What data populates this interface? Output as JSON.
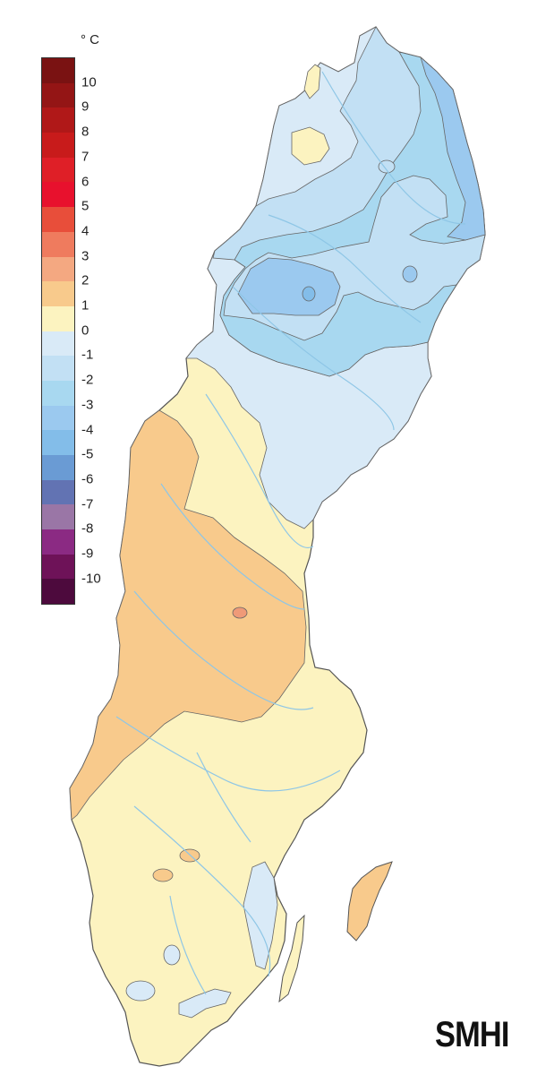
{
  "legend": {
    "unit": "° C",
    "entries": [
      {
        "label": "10",
        "color": "#7a1212"
      },
      {
        "label": "9",
        "color": "#941515"
      },
      {
        "label": "8",
        "color": "#b01818"
      },
      {
        "label": "7",
        "color": "#c81b1b"
      },
      {
        "label": "6",
        "color": "#df1f27"
      },
      {
        "label": "5",
        "color": "#e8112d"
      },
      {
        "label": "4",
        "color": "#e84e3a"
      },
      {
        "label": "3",
        "color": "#ef7b5e"
      },
      {
        "label": "2",
        "color": "#f4a881"
      },
      {
        "label": "1",
        "color": "#f8ca8c"
      },
      {
        "label": "0",
        "color": "#fcf3c0"
      },
      {
        "label": "-1",
        "color": "#d9eaf7"
      },
      {
        "label": "-2",
        "color": "#c2e0f4"
      },
      {
        "label": "-3",
        "color": "#a8d8f0"
      },
      {
        "label": "-4",
        "color": "#9bc9ef"
      },
      {
        "label": "-5",
        "color": "#83bde9"
      },
      {
        "label": "-6",
        "color": "#6a9bd4"
      },
      {
        "label": "-7",
        "color": "#6273b3"
      },
      {
        "label": "-8",
        "color": "#9a76a6"
      },
      {
        "label": "-9",
        "color": "#8b2a83"
      },
      {
        "label": "-10",
        "color": "#6e1258"
      },
      {
        "label": "",
        "color": "#4d0a3d"
      }
    ]
  },
  "map": {
    "zones": {
      "zero_to_one": "#fcf3c0",
      "one_to_two": "#f8ca8c",
      "two_to_three": "#ef9a78",
      "minus_one_to_zero": "#d9eaf7",
      "minus_two_to_minus_one": "#c2e0f4",
      "minus_three_to_minus_two": "#a8d8f0",
      "minus_four_to_minus_three": "#9bc9ef",
      "rivers": "#8ec6e6"
    }
  },
  "logo": "SMHI"
}
